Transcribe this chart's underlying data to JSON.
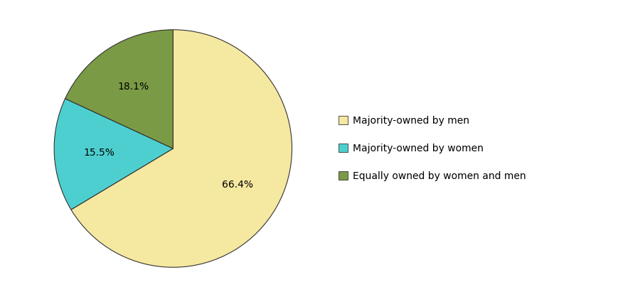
{
  "labels": [
    "Majority-owned by men",
    "Majority-owned by women",
    "Equally owned by women and men"
  ],
  "values": [
    66.4,
    15.5,
    18.1
  ],
  "colors": [
    "#F5E8A0",
    "#4ECFCF",
    "#7A9A45"
  ],
  "legend_labels": [
    "Majority-owned by men",
    "Majority-owned by women",
    "Equally owned by women and men"
  ],
  "startangle": 90,
  "background_color": "#ffffff",
  "text_color": "#000000",
  "font_size": 10,
  "legend_font_size": 10,
  "edge_color": "#333333",
  "edge_linewidth": 0.8,
  "pct_distance": 0.62
}
